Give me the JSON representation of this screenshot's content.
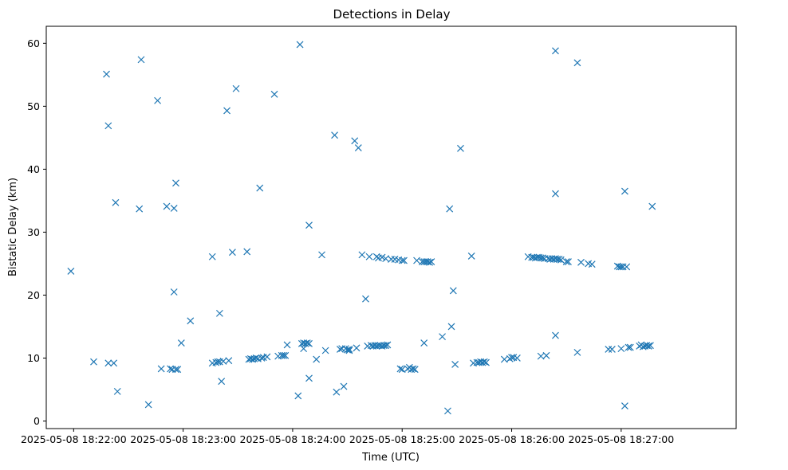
{
  "chart_data": {
    "type": "scatter",
    "title": "Detections in Delay",
    "xlabel": "Time (UTC)",
    "ylabel": "Bistatic Delay (km)",
    "marker": "x",
    "color": "#1f77b4",
    "xlim_seconds": [
      -15,
      363
    ],
    "ylim": [
      -1.2,
      62.7
    ],
    "x_reference_label": "2025-05-08 18:22:00",
    "x_ticks": [
      {
        "seconds": 0,
        "label": "2025-05-08 18:22:00"
      },
      {
        "seconds": 60,
        "label": "2025-05-08 18:23:00"
      },
      {
        "seconds": 120,
        "label": "2025-05-08 18:24:00"
      },
      {
        "seconds": 180,
        "label": "2025-05-08 18:25:00"
      },
      {
        "seconds": 240,
        "label": "2025-05-08 18:26:00"
      },
      {
        "seconds": 300,
        "label": "2025-05-08 18:27:00"
      }
    ],
    "y_ticks": [
      0,
      10,
      20,
      30,
      40,
      50,
      60
    ],
    "series": [
      {
        "name": "Detections",
        "points": [
          [
            -1.5,
            23.8
          ],
          [
            11,
            9.4
          ],
          [
            18,
            55.1
          ],
          [
            19,
            46.9
          ],
          [
            19,
            9.2
          ],
          [
            22,
            9.2
          ],
          [
            23,
            34.7
          ],
          [
            24,
            4.7
          ],
          [
            36,
            33.7
          ],
          [
            37,
            57.4
          ],
          [
            41,
            2.6
          ],
          [
            46,
            50.9
          ],
          [
            48,
            8.3
          ],
          [
            51,
            34.1
          ],
          [
            53,
            8.3
          ],
          [
            54,
            8.2
          ],
          [
            55,
            20.5
          ],
          [
            55,
            33.8
          ],
          [
            56,
            37.8
          ],
          [
            56,
            8.2
          ],
          [
            57,
            8.2
          ],
          [
            59,
            12.4
          ],
          [
            64,
            15.9
          ],
          [
            76,
            26.1
          ],
          [
            76,
            9.2
          ],
          [
            78,
            9.3
          ],
          [
            79,
            9.4
          ],
          [
            80,
            17.1
          ],
          [
            80,
            9.4
          ],
          [
            81,
            6.3
          ],
          [
            82,
            9.5
          ],
          [
            84,
            49.3
          ],
          [
            85,
            9.6
          ],
          [
            87,
            26.8
          ],
          [
            89,
            52.8
          ],
          [
            95,
            26.9
          ],
          [
            96,
            9.8
          ],
          [
            97,
            9.9
          ],
          [
            98,
            9.8
          ],
          [
            99,
            9.9
          ],
          [
            100,
            10
          ],
          [
            101,
            9.9
          ],
          [
            102,
            37
          ],
          [
            103,
            10
          ],
          [
            104,
            10.1
          ],
          [
            106,
            10.2
          ],
          [
            110,
            51.9
          ],
          [
            112,
            10.3
          ],
          [
            114,
            10.4
          ],
          [
            115,
            10.4
          ],
          [
            116,
            10.4
          ],
          [
            117,
            12.1
          ],
          [
            123,
            4
          ],
          [
            124,
            59.8
          ],
          [
            125,
            12.3
          ],
          [
            126,
            12.4
          ],
          [
            126,
            11.5
          ],
          [
            127,
            12.3
          ],
          [
            128,
            12.4
          ],
          [
            129,
            6.8
          ],
          [
            129,
            31.1
          ],
          [
            129,
            12.3
          ],
          [
            133,
            9.8
          ],
          [
            136,
            26.4
          ],
          [
            138,
            11.2
          ],
          [
            143,
            45.4
          ],
          [
            144,
            4.6
          ],
          [
            146,
            11.4
          ],
          [
            147,
            11.5
          ],
          [
            148,
            5.5
          ],
          [
            149,
            11.5
          ],
          [
            150,
            11.3
          ],
          [
            151,
            11.2
          ],
          [
            151,
            11.4
          ],
          [
            154,
            44.5
          ],
          [
            155,
            11.6
          ],
          [
            156,
            43.4
          ],
          [
            158,
            26.4
          ],
          [
            160,
            19.4
          ],
          [
            161,
            11.9
          ],
          [
            162,
            26.1
          ],
          [
            163,
            12
          ],
          [
            164,
            11.9
          ],
          [
            165,
            12
          ],
          [
            166,
            26.1
          ],
          [
            166,
            11.9
          ],
          [
            167,
            25.9
          ],
          [
            167,
            12
          ],
          [
            168,
            12
          ],
          [
            169,
            26
          ],
          [
            169,
            11.9
          ],
          [
            170,
            12
          ],
          [
            171,
            25.8
          ],
          [
            171,
            12
          ],
          [
            172,
            12.1
          ],
          [
            174,
            25.7
          ],
          [
            176,
            25.7
          ],
          [
            178,
            25.6
          ],
          [
            179,
            8.3
          ],
          [
            180,
            25.5
          ],
          [
            180,
            8.2
          ],
          [
            181,
            25.5
          ],
          [
            183,
            8.3
          ],
          [
            184,
            8.5
          ],
          [
            185,
            8.2
          ],
          [
            186,
            8.3
          ],
          [
            187,
            8.2
          ],
          [
            188,
            25.5
          ],
          [
            191,
            25.3
          ],
          [
            192,
            25.3
          ],
          [
            192,
            12.4
          ],
          [
            193,
            25.3
          ],
          [
            194,
            25.3
          ],
          [
            195,
            25.2
          ],
          [
            196,
            25.3
          ],
          [
            202,
            13.4
          ],
          [
            205,
            1.6
          ],
          [
            206,
            33.7
          ],
          [
            207,
            15
          ],
          [
            208,
            20.7
          ],
          [
            209,
            9
          ],
          [
            212,
            43.3
          ],
          [
            218,
            26.2
          ],
          [
            219,
            9.2
          ],
          [
            221,
            9.3
          ],
          [
            222,
            9.3
          ],
          [
            223,
            9.4
          ],
          [
            224,
            9.3
          ],
          [
            225,
            9.4
          ],
          [
            226,
            9.3
          ],
          [
            236,
            9.8
          ],
          [
            239,
            9.9
          ],
          [
            240,
            10.1
          ],
          [
            241,
            10.1
          ],
          [
            243,
            10
          ],
          [
            249,
            26.1
          ],
          [
            251,
            26
          ],
          [
            252,
            26
          ],
          [
            253,
            25.9
          ],
          [
            254,
            26
          ],
          [
            255,
            26
          ],
          [
            256,
            25.9
          ],
          [
            256,
            10.3
          ],
          [
            257,
            25.9
          ],
          [
            258,
            25.8
          ],
          [
            259,
            10.4
          ],
          [
            260,
            25.8
          ],
          [
            261,
            25.7
          ],
          [
            262,
            25.8
          ],
          [
            263,
            25.7
          ],
          [
            264,
            58.8
          ],
          [
            264,
            36.1
          ],
          [
            264,
            25.8
          ],
          [
            264,
            13.6
          ],
          [
            265,
            25.7
          ],
          [
            266,
            25.7
          ],
          [
            267,
            25.6
          ],
          [
            270,
            25.3
          ],
          [
            271,
            25.3
          ],
          [
            276,
            56.9
          ],
          [
            276,
            10.9
          ],
          [
            278,
            25.2
          ],
          [
            282,
            25
          ],
          [
            284,
            24.9
          ],
          [
            293,
            11.4
          ],
          [
            295,
            11.4
          ],
          [
            298,
            24.6
          ],
          [
            299,
            24.5
          ],
          [
            300,
            11.5
          ],
          [
            300,
            24.5
          ],
          [
            301,
            24.5
          ],
          [
            302,
            2.4
          ],
          [
            302,
            36.5
          ],
          [
            303,
            24.5
          ],
          [
            304,
            11.7
          ],
          [
            305,
            11.7
          ],
          [
            310,
            11.9
          ],
          [
            311,
            12.1
          ],
          [
            312,
            11.8
          ],
          [
            313,
            11.9
          ],
          [
            314,
            12
          ],
          [
            315,
            11.9
          ],
          [
            316,
            12
          ],
          [
            317,
            34.1
          ]
        ]
      }
    ]
  }
}
